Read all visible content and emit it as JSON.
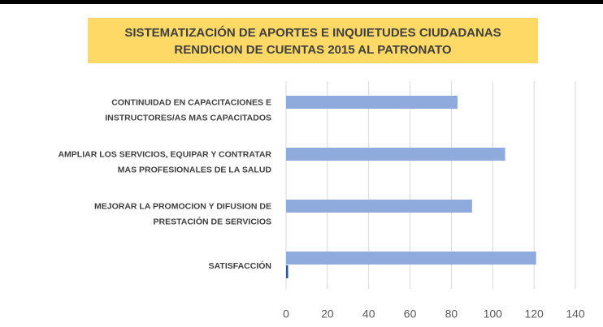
{
  "chart_data": {
    "type": "hbar",
    "title": [
      "SISTEMATIZACIÓN DE APORTES E INQUIETUDES CIUDADANAS",
      "RENDICION DE CUENTAS 2015 AL PATRONATO"
    ],
    "categories": [
      [
        "CONTINUIDAD EN CAPACITACIONES E",
        "INSTRUCTORES/AS MAS CAPACITADOS"
      ],
      [
        "AMPLIAR LOS SERVICIOS, EQUIPAR Y CONTRATAR",
        "MAS PROFESIONALES DE LA SALUD"
      ],
      [
        "MEJORAR LA PROMOCION Y DIFUSION DE",
        "PRESTACIÓN DE SERVICIOS"
      ],
      [
        "SATISFACCIÓN"
      ]
    ],
    "series": [
      {
        "color": "#8faadc",
        "values": [
          83,
          106,
          90,
          121
        ]
      },
      {
        "color": "#2f5597",
        "values": [
          0,
          0,
          0,
          1
        ]
      }
    ],
    "xlim": [
      0,
      140
    ],
    "xticks": [
      0,
      20,
      40,
      60,
      80,
      100,
      120,
      140
    ],
    "grid": true
  }
}
